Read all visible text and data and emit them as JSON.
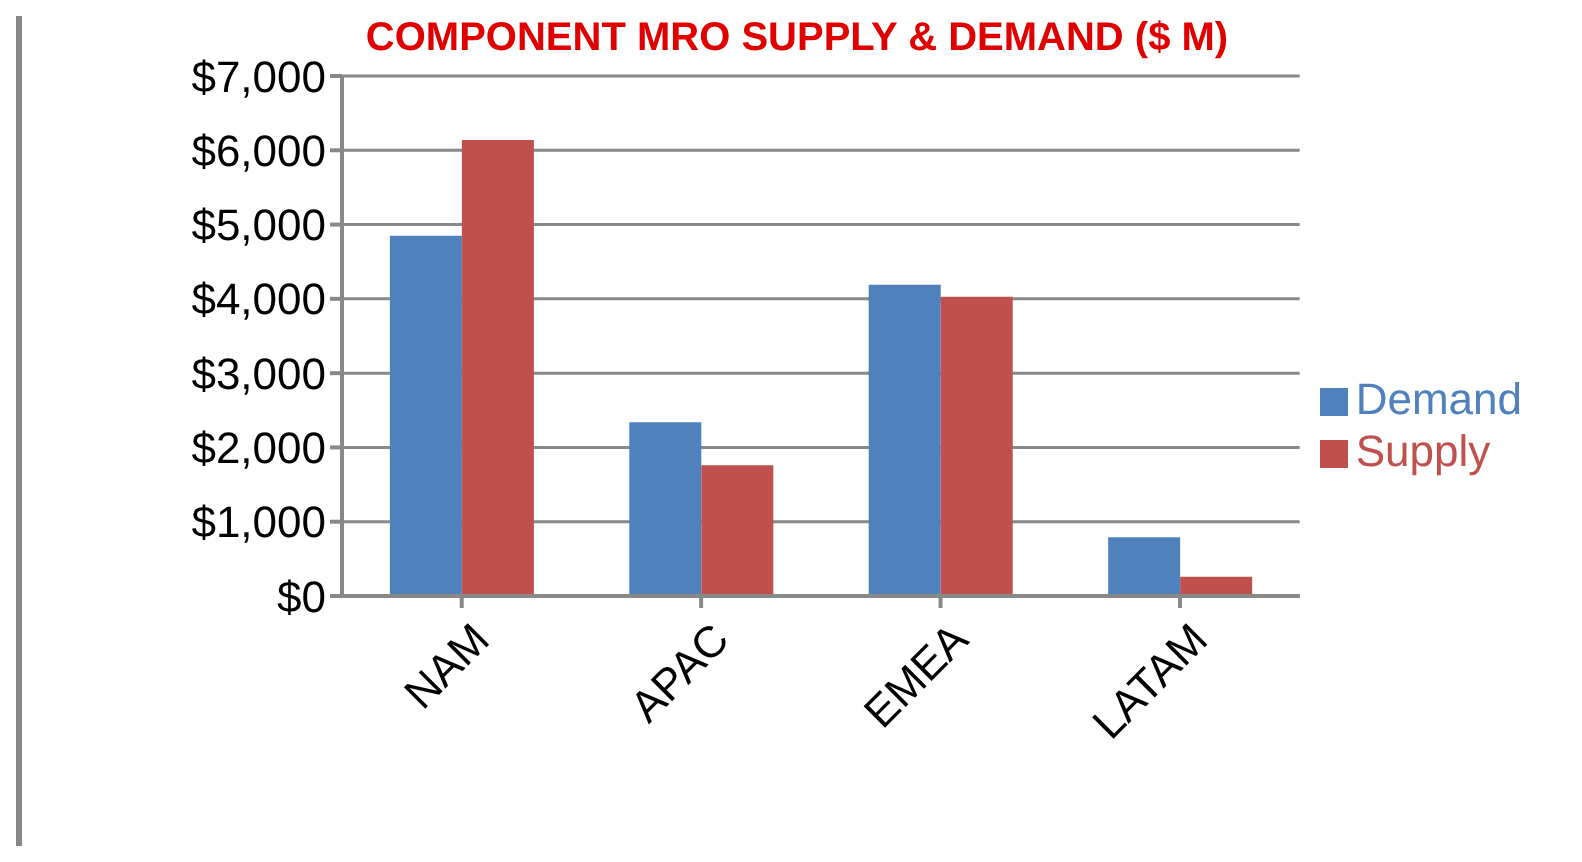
{
  "chart_data": {
    "type": "bar",
    "title": "COMPONENT MRO SUPPLY & DEMAND ($ M)",
    "categories": [
      "NAM",
      "APAC",
      "EMEA",
      "LATAM"
    ],
    "series": [
      {
        "name": "Demand",
        "color": "#4f81bd",
        "values": [
          4850,
          2340,
          4190,
          790
        ]
      },
      {
        "name": "Supply",
        "color": "#c0504d",
        "values": [
          6140,
          1760,
          4030,
          260
        ]
      }
    ],
    "ylim": [
      0,
      7000
    ],
    "yticks": [
      {
        "value": 0,
        "label": "$0"
      },
      {
        "value": 1000,
        "label": "$1,000"
      },
      {
        "value": 2000,
        "label": "$2,000"
      },
      {
        "value": 3000,
        "label": "$3,000"
      },
      {
        "value": 4000,
        "label": "$4,000"
      },
      {
        "value": 5000,
        "label": "$5,000"
      },
      {
        "value": 6000,
        "label": "$6,000"
      },
      {
        "value": 7000,
        "label": "$7,000"
      }
    ],
    "grid": "y",
    "legend": "right"
  }
}
